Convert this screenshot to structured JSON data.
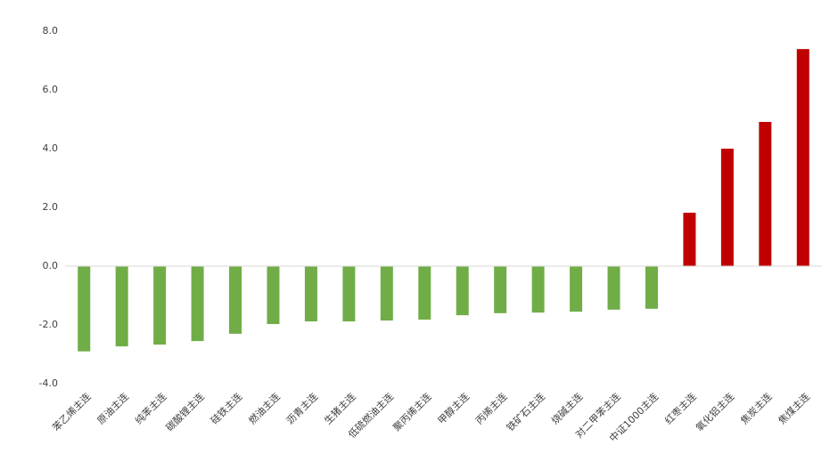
{
  "chart_data": {
    "type": "bar",
    "categories": [
      "苯乙烯主连",
      "原油主连",
      "纯苯主连",
      "碳酸锂主连",
      "硅铁主连",
      "燃油主连",
      "沥青主连",
      "生猪主连",
      "低硫燃油主连",
      "聚丙烯主连",
      "甲醇主连",
      "丙烯主连",
      "铁矿石主连",
      "烧碱主连",
      "对二甲苯主连",
      "中证1000主连",
      "红枣主连",
      "氧化铝主连",
      "焦炭主连",
      "焦煤主连"
    ],
    "values": [
      -2.9,
      -2.73,
      -2.67,
      -2.55,
      -2.3,
      -1.97,
      -1.88,
      -1.88,
      -1.85,
      -1.82,
      -1.67,
      -1.6,
      -1.58,
      -1.55,
      -1.48,
      -1.45,
      1.82,
      4.0,
      4.91,
      7.39
    ],
    "positive_color": "#c00000",
    "negative_color": "#70ad47",
    "ylim": [
      -4,
      8
    ],
    "yticks": [
      {
        "value": -4,
        "label": "-4.0"
      },
      {
        "value": -2,
        "label": "-2.0"
      },
      {
        "value": 0,
        "label": "0.0"
      },
      {
        "value": 2,
        "label": "2.0"
      },
      {
        "value": 4,
        "label": "4.0"
      },
      {
        "value": 6,
        "label": "6.0"
      },
      {
        "value": 8,
        "label": "8.0"
      }
    ],
    "grid": false
  }
}
